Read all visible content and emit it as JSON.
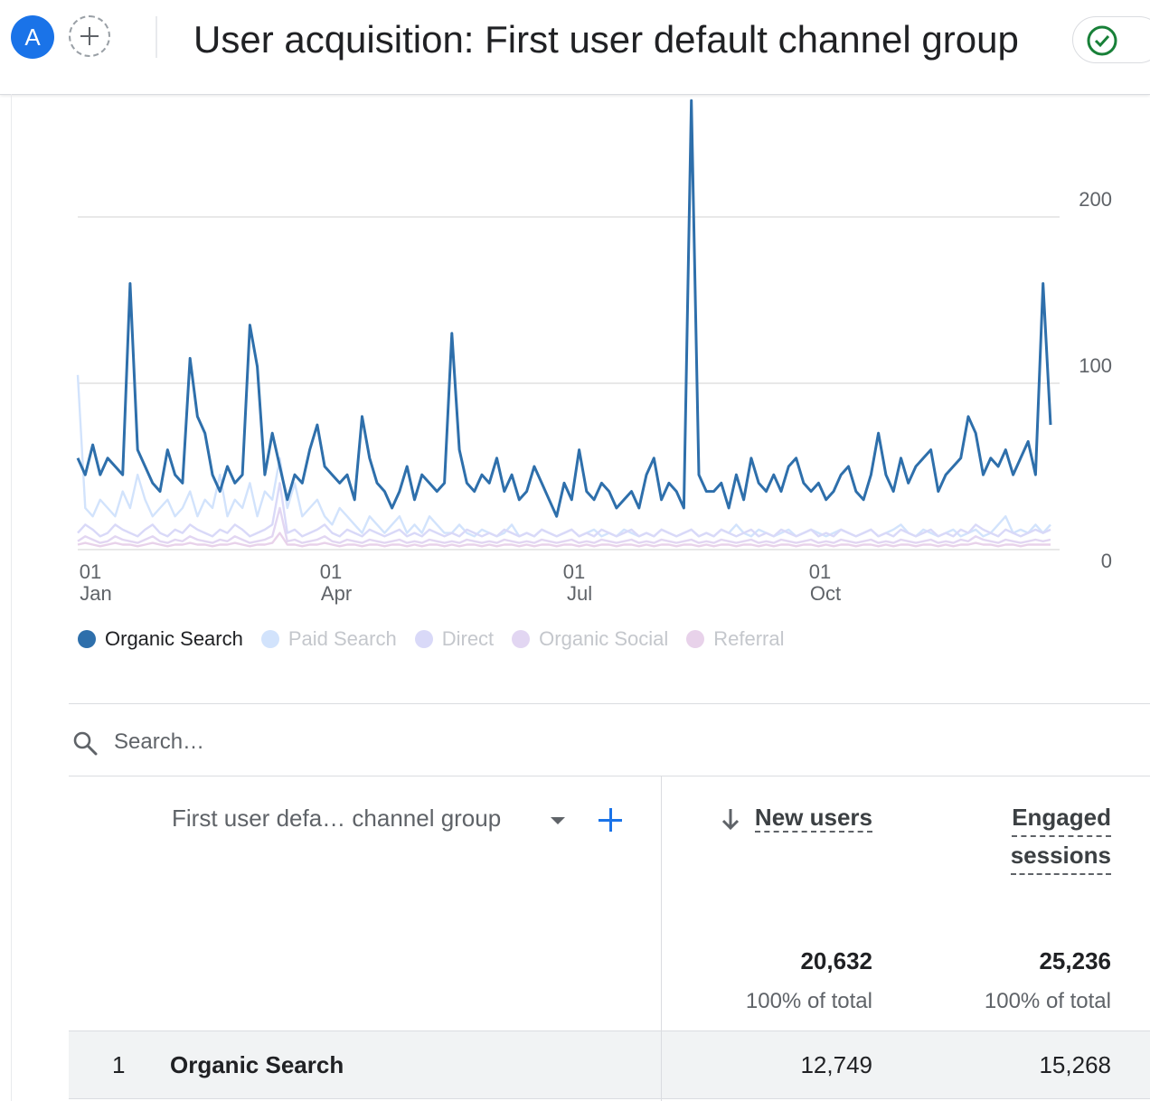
{
  "header": {
    "avatar_letter": "A",
    "title": "User acquisition: First user default channel group"
  },
  "colors": {
    "accent": "#1a73e8",
    "status_ok": "#188038",
    "organic_search": "#2e6fab",
    "paid_search": "#d2e3fc",
    "direct": "#d9d9f8",
    "organic_social": "#e2d6f2",
    "referral": "#e8d2ea"
  },
  "chart_data": {
    "type": "line",
    "x_axis": {
      "ticks": [
        {
          "day": "01",
          "month": "Jan"
        },
        {
          "day": "01",
          "month": "Apr"
        },
        {
          "day": "01",
          "month": "Jul"
        },
        {
          "day": "01",
          "month": "Oct"
        }
      ]
    },
    "y_axis": {
      "ticks": [
        "0",
        "100",
        "200"
      ],
      "ylim": [
        0,
        260
      ]
    },
    "grid": true,
    "legend_position": "bottom-left",
    "series": [
      {
        "name": "Organic Search",
        "color": "#2e6fab",
        "active": true,
        "sampling_days": 3,
        "values": [
          55,
          45,
          63,
          45,
          55,
          50,
          45,
          160,
          60,
          50,
          40,
          35,
          60,
          45,
          40,
          115,
          80,
          70,
          45,
          35,
          50,
          40,
          45,
          135,
          110,
          45,
          70,
          50,
          30,
          45,
          40,
          60,
          75,
          50,
          45,
          40,
          45,
          30,
          80,
          55,
          40,
          35,
          25,
          35,
          50,
          30,
          45,
          40,
          35,
          40,
          130,
          60,
          40,
          35,
          45,
          40,
          55,
          35,
          45,
          30,
          35,
          50,
          40,
          30,
          20,
          40,
          30,
          60,
          35,
          30,
          40,
          35,
          25,
          30,
          35,
          25,
          45,
          55,
          30,
          40,
          35,
          25,
          270,
          45,
          35,
          35,
          40,
          25,
          45,
          30,
          55,
          40,
          35,
          45,
          35,
          50,
          55,
          40,
          35,
          40,
          30,
          35,
          45,
          50,
          35,
          30,
          45,
          70,
          45,
          35,
          55,
          40,
          50,
          55,
          60,
          35,
          45,
          50,
          55,
          80,
          70,
          45,
          55,
          50,
          60,
          45,
          55,
          65,
          45,
          160,
          75
        ]
      },
      {
        "name": "Paid Search",
        "color": "#d2e3fc",
        "active": false,
        "sampling_days": 3,
        "values": [
          105,
          25,
          20,
          30,
          25,
          20,
          35,
          25,
          45,
          30,
          20,
          25,
          30,
          20,
          25,
          35,
          20,
          30,
          25,
          45,
          20,
          30,
          25,
          40,
          20,
          35,
          30,
          55,
          25,
          40,
          20,
          25,
          30,
          20,
          15,
          25,
          20,
          15,
          10,
          20,
          15,
          10,
          15,
          20,
          10,
          15,
          10,
          20,
          15,
          10,
          10,
          15,
          10,
          8,
          12,
          10,
          8,
          10,
          15,
          8,
          10,
          8,
          12,
          10,
          8,
          10,
          12,
          8,
          10,
          12,
          8,
          10,
          8,
          12,
          10,
          8,
          10,
          8,
          12,
          10,
          8,
          10,
          12,
          8,
          10,
          8,
          12,
          10,
          15,
          10,
          8,
          12,
          10,
          8,
          10,
          12,
          8,
          10,
          12,
          10,
          8,
          10,
          12,
          10,
          8,
          10,
          12,
          8,
          10,
          12,
          15,
          10,
          8,
          12,
          10,
          8,
          10,
          12,
          8,
          10,
          12,
          8,
          10,
          15,
          20,
          10,
          12,
          10,
          15,
          10,
          15
        ]
      },
      {
        "name": "Direct",
        "color": "#d9d9f8",
        "active": false,
        "sampling_days": 3,
        "values": [
          10,
          15,
          12,
          8,
          10,
          15,
          12,
          10,
          8,
          12,
          15,
          10,
          8,
          12,
          10,
          15,
          12,
          10,
          8,
          12,
          10,
          15,
          12,
          8,
          10,
          12,
          15,
          40,
          10,
          12,
          8,
          10,
          12,
          15,
          10,
          8,
          12,
          10,
          8,
          12,
          10,
          8,
          10,
          12,
          8,
          10,
          8,
          12,
          10,
          8,
          10,
          8,
          12,
          10,
          8,
          10,
          8,
          12,
          10,
          8,
          10,
          8,
          12,
          10,
          8,
          10,
          12,
          8,
          10,
          8,
          12,
          10,
          8,
          10,
          12,
          8,
          10,
          8,
          12,
          10,
          8,
          10,
          12,
          8,
          10,
          8,
          12,
          10,
          8,
          10,
          12,
          8,
          10,
          8,
          12,
          10,
          8,
          10,
          12,
          8,
          10,
          8,
          12,
          10,
          8,
          10,
          12,
          8,
          10,
          8,
          12,
          10,
          8,
          10,
          12,
          8,
          10,
          8,
          12,
          10,
          15,
          12,
          10,
          8,
          12,
          10,
          8,
          10,
          12,
          10,
          12
        ]
      },
      {
        "name": "Organic Social",
        "color": "#e2d6f2",
        "active": false,
        "sampling_days": 3,
        "values": [
          5,
          8,
          6,
          4,
          5,
          8,
          6,
          5,
          4,
          6,
          8,
          5,
          4,
          6,
          5,
          8,
          6,
          5,
          4,
          6,
          5,
          8,
          6,
          4,
          5,
          6,
          8,
          25,
          5,
          6,
          4,
          5,
          6,
          8,
          5,
          4,
          6,
          5,
          4,
          6,
          5,
          4,
          5,
          6,
          4,
          5,
          4,
          6,
          5,
          4,
          5,
          4,
          6,
          5,
          4,
          5,
          4,
          6,
          5,
          4,
          5,
          4,
          6,
          5,
          4,
          5,
          6,
          4,
          5,
          4,
          6,
          5,
          4,
          5,
          6,
          4,
          5,
          4,
          6,
          5,
          4,
          5,
          6,
          4,
          5,
          4,
          6,
          5,
          4,
          5,
          6,
          4,
          5,
          4,
          6,
          5,
          4,
          5,
          6,
          4,
          5,
          4,
          6,
          5,
          4,
          5,
          6,
          4,
          5,
          4,
          6,
          5,
          4,
          5,
          6,
          4,
          5,
          4,
          6,
          5,
          8,
          6,
          5,
          4,
          6,
          5,
          4,
          5,
          6,
          5,
          6
        ]
      },
      {
        "name": "Referral",
        "color": "#e8d2ea",
        "active": false,
        "sampling_days": 3,
        "values": [
          3,
          4,
          3,
          2,
          3,
          4,
          3,
          3,
          2,
          3,
          4,
          3,
          2,
          3,
          3,
          4,
          3,
          3,
          2,
          3,
          3,
          4,
          3,
          2,
          3,
          3,
          4,
          10,
          3,
          3,
          2,
          3,
          3,
          4,
          3,
          2,
          3,
          3,
          2,
          3,
          3,
          2,
          3,
          3,
          2,
          3,
          2,
          3,
          3,
          2,
          3,
          2,
          3,
          3,
          2,
          3,
          2,
          3,
          3,
          2,
          3,
          2,
          3,
          3,
          2,
          3,
          3,
          2,
          3,
          2,
          3,
          3,
          2,
          3,
          3,
          2,
          3,
          2,
          3,
          3,
          2,
          3,
          3,
          2,
          3,
          2,
          3,
          3,
          2,
          3,
          3,
          2,
          3,
          2,
          3,
          3,
          2,
          3,
          3,
          2,
          3,
          2,
          3,
          3,
          2,
          3,
          3,
          2,
          3,
          2,
          3,
          3,
          2,
          3,
          3,
          2,
          3,
          2,
          3,
          3,
          4,
          3,
          3,
          2,
          3,
          3,
          2,
          3,
          3,
          3,
          3
        ]
      }
    ]
  },
  "search": {
    "placeholder": "Search…"
  },
  "table": {
    "dimension_header": "First user defa… channel group",
    "metrics": [
      {
        "header_lines": [
          "New users"
        ],
        "sorted": "descending",
        "total": "20,632",
        "total_pct": "100% of total"
      },
      {
        "header_lines": [
          "Engaged",
          "sessions"
        ],
        "total": "25,236",
        "total_pct": "100% of total"
      }
    ],
    "rows": [
      {
        "index": "1",
        "channel": "Organic Search",
        "new_users": "12,749",
        "engaged_sessions": "15,268"
      }
    ]
  }
}
